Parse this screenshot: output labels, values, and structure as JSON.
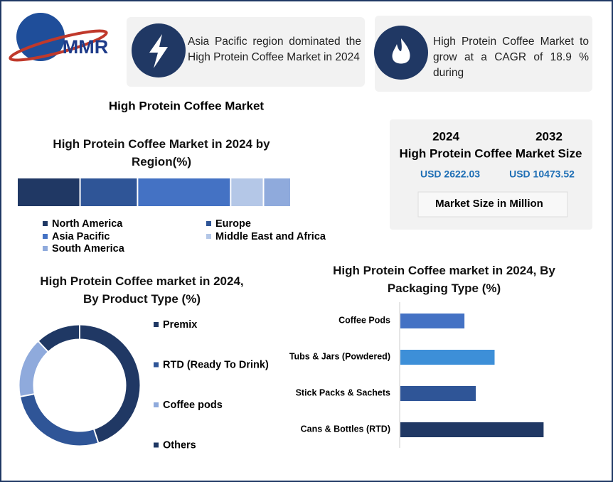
{
  "logo": "MMR",
  "cards": [
    {
      "text": "Asia Pacific region dominated the High Protein Coffee Market in 2024"
    },
    {
      "text": "High Protein Coffee Market to grow at a CAGR of 18.9 % during"
    }
  ],
  "heading": "High Protein Coffee Market",
  "market_size": {
    "years": [
      "2024",
      "2032"
    ],
    "title": "High Protein Coffee Market Size",
    "amounts": [
      "USD 2622.03",
      "USD 10473.52"
    ],
    "note": "Market Size in Million"
  },
  "chart_data": [
    {
      "type": "stacked_bar",
      "title": "High Protein Coffee  Market in 2024 by Region(%)",
      "series": [
        {
          "name": "North America",
          "color": "#203864",
          "values": [
            23
          ]
        },
        {
          "name": "Europe",
          "color": "#2f5597",
          "values": [
            21
          ]
        },
        {
          "name": "Asia Pacific",
          "color": "#4472c4",
          "values": [
            34
          ]
        },
        {
          "name": "Middle East and Africa",
          "color": "#b4c7e7",
          "values": [
            12
          ]
        },
        {
          "name": "South America",
          "color": "#8faadc",
          "values": [
            10
          ]
        }
      ]
    },
    {
      "type": "donut",
      "title": "High Protein Coffee  market in 2024, By Product Type (%)",
      "categories": [
        "Premix",
        "RTD (Ready To Drink)",
        "Coffee pods",
        "Others"
      ],
      "values": [
        45,
        27,
        16,
        12
      ],
      "colors": [
        "#203864",
        "#2f5597",
        "#8faadc",
        "#1f3864"
      ]
    },
    {
      "type": "hbar",
      "title": "High Protein Coffee  market in 2024, By Packaging Type (%)",
      "categories": [
        "Coffee Pods",
        "Tubs & Jars (Powdered)",
        "Stick Packs & Sachets",
        "Cans & Bottles (RTD)"
      ],
      "values": [
        17,
        25,
        20,
        38
      ],
      "colors": [
        "#4472c4",
        "#3d8fd8",
        "#2f5597",
        "#203864"
      ]
    }
  ]
}
